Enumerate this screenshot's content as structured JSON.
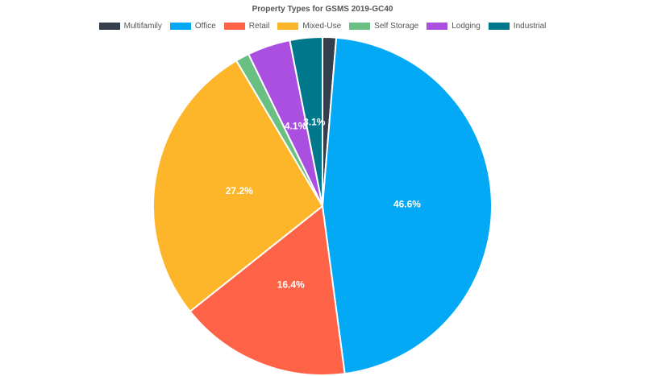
{
  "chart_data": {
    "type": "pie",
    "title": "Property Types for GSMS 2019-GC40",
    "legend": "top",
    "slices": [
      {
        "label": "Multifamily",
        "value": 1.3,
        "color": "#343F4B",
        "data_label": ""
      },
      {
        "label": "Office",
        "value": 46.6,
        "color": "#03A9F4",
        "data_label": "46.6%"
      },
      {
        "label": "Retail",
        "value": 16.4,
        "color": "#FF6347",
        "data_label": "16.4%"
      },
      {
        "label": "Mixed-Use",
        "value": 27.2,
        "color": "#FDB62A",
        "data_label": "27.2%"
      },
      {
        "label": "Self Storage",
        "value": 1.3,
        "color": "#6ABF82",
        "data_label": ""
      },
      {
        "label": "Lodging",
        "value": 4.1,
        "color": "#AA4FE0",
        "data_label": "4.1%"
      },
      {
        "label": "Industrial",
        "value": 3.1,
        "color": "#00788B",
        "data_label": "3.1%"
      }
    ]
  }
}
